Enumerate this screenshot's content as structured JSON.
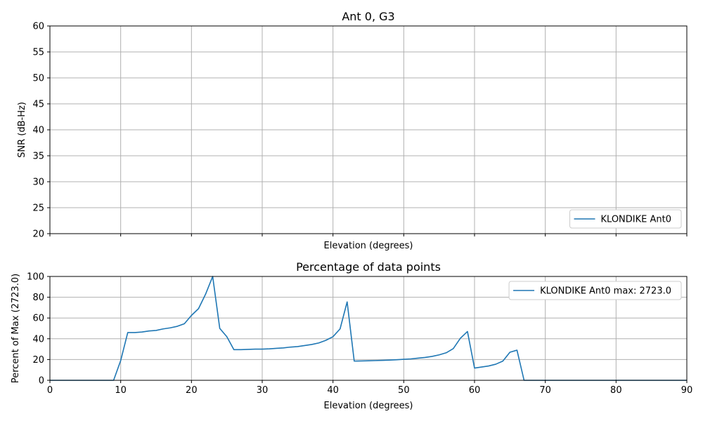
{
  "chart_data": [
    {
      "type": "line",
      "title": "Ant 0, G3",
      "xlabel": "Elevation (degrees)",
      "ylabel": "SNR (dB-Hz)",
      "xlim": [
        0,
        90
      ],
      "ylim": [
        20,
        60
      ],
      "xticks": [
        0,
        10,
        20,
        30,
        40,
        50,
        60,
        70,
        80,
        90
      ],
      "xtick_labels_visible": false,
      "yticks": [
        20,
        25,
        30,
        35,
        40,
        45,
        50,
        55,
        60
      ],
      "grid": true,
      "legend_position": "lower right",
      "series": [
        {
          "name": "KLONDIKE Ant0",
          "color": "#1f77b4",
          "x": [],
          "y": []
        }
      ]
    },
    {
      "type": "line",
      "title": "Percentage of data points",
      "xlabel": "Elevation (degrees)",
      "ylabel": "Percent of Max (2723.0)",
      "xlim": [
        0,
        90
      ],
      "ylim": [
        0,
        100
      ],
      "xticks": [
        0,
        10,
        20,
        30,
        40,
        50,
        60,
        70,
        80,
        90
      ],
      "xtick_labels_visible": true,
      "yticks": [
        0,
        20,
        40,
        60,
        80,
        100
      ],
      "grid": true,
      "legend_position": "upper right",
      "series": [
        {
          "name": "KLONDIKE Ant0 max: 2723.0",
          "color": "#1f77b4",
          "x": [
            0,
            1,
            2,
            3,
            4,
            5,
            6,
            7,
            8,
            9,
            10,
            11,
            12,
            13,
            14,
            15,
            16,
            17,
            18,
            19,
            20,
            21,
            22,
            23,
            24,
            25,
            26,
            27,
            28,
            29,
            30,
            31,
            32,
            33,
            34,
            35,
            36,
            37,
            38,
            39,
            40,
            41,
            42,
            43,
            44,
            45,
            46,
            47,
            48,
            49,
            50,
            51,
            52,
            53,
            54,
            55,
            56,
            57,
            58,
            59,
            60,
            61,
            62,
            63,
            64,
            65,
            66,
            67,
            68,
            69,
            70,
            71,
            72,
            73,
            74,
            75,
            76,
            77,
            78,
            79,
            80,
            81,
            82,
            83,
            84,
            85,
            86,
            87,
            88,
            89,
            90
          ],
          "y": [
            0,
            0,
            0,
            0,
            0,
            0,
            0,
            0,
            0,
            0,
            19,
            46,
            46,
            46.5,
            47.5,
            48,
            49.5,
            50.5,
            52,
            54.5,
            62.5,
            69,
            83,
            100,
            50,
            42,
            29.5,
            29.5,
            29.8,
            30,
            30,
            30.3,
            30.8,
            31.2,
            32,
            32.5,
            33.5,
            34.5,
            36,
            38.5,
            42,
            49.5,
            75.5,
            18.5,
            18.6,
            18.8,
            19,
            19.2,
            19.5,
            19.8,
            20.2,
            20.6,
            21.3,
            22,
            23,
            24.5,
            26.5,
            30.5,
            40.5,
            47,
            11.8,
            12.8,
            13.8,
            15.5,
            18.5,
            27,
            29,
            0,
            0,
            0,
            0,
            0,
            0,
            0,
            0,
            0,
            0,
            0,
            0,
            0,
            0,
            0,
            0,
            0,
            0,
            0,
            0,
            0,
            0,
            0,
            0
          ]
        }
      ]
    }
  ]
}
